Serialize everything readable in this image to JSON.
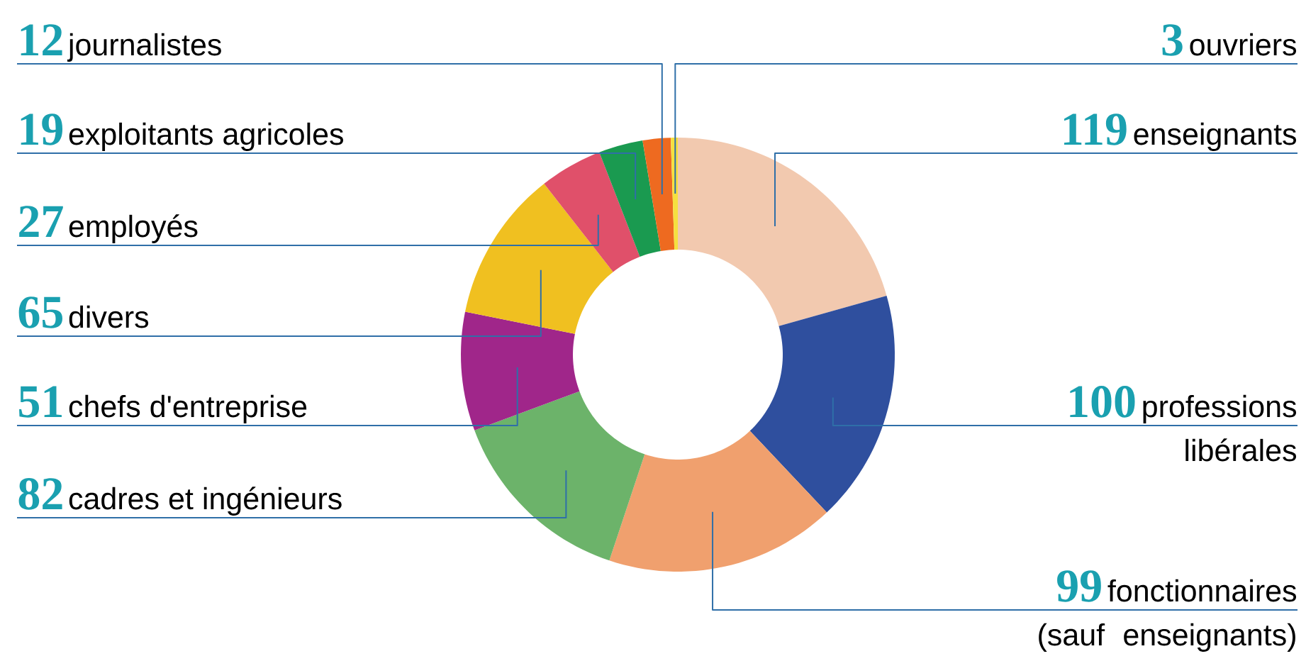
{
  "chart_data": {
    "type": "donut",
    "categories": [
      "enseignants",
      "professions libérales",
      "fonctionnaires (sauf enseignants)",
      "cadres et ingénieurs",
      "chefs d'entreprise",
      "divers",
      "employés",
      "exploitants agricoles",
      "journalistes",
      "ouvriers"
    ],
    "values": [
      119,
      100,
      99,
      82,
      51,
      65,
      27,
      19,
      12,
      3
    ],
    "colors": [
      "#f2c9af",
      "#2f4f9e",
      "#f0a06e",
      "#6cb36a",
      "#a0268a",
      "#f0c020",
      "#e0506a",
      "#1a9a50",
      "#ee6a20",
      "#f5e040"
    ],
    "data_labels": true
  }
}
